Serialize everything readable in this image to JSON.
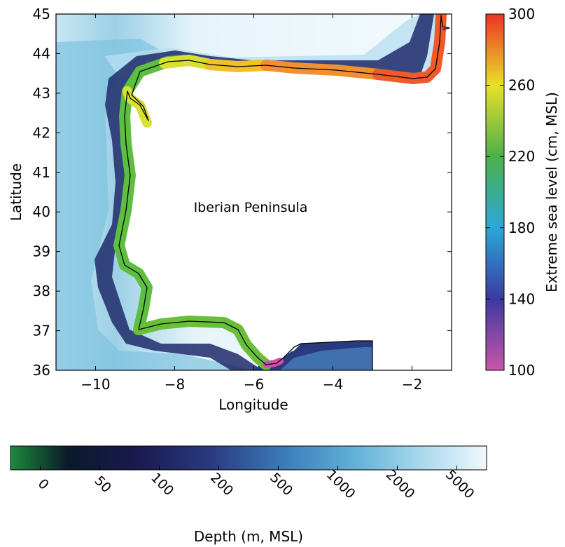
{
  "map": {
    "region_label": "Iberian Peninsula",
    "xlabel": "Longitude",
    "ylabel": "Latitude",
    "x_ticks": [
      "−10",
      "−8",
      "−6",
      "−4",
      "−2"
    ],
    "y_ticks": [
      "36",
      "37",
      "38",
      "39",
      "40",
      "41",
      "42",
      "43",
      "44",
      "45"
    ],
    "xlim": [
      -11,
      -1
    ],
    "ylim": [
      36,
      45
    ]
  },
  "colorbar_sea_level": {
    "label": "Extreme sea level (cm, MSL)",
    "ticks": [
      "100",
      "140",
      "180",
      "220",
      "260",
      "300"
    ],
    "colors": [
      "#cc55aa",
      "#3a3aa0",
      "#2aa8d8",
      "#4cb04a",
      "#e8e02a",
      "#ee3322"
    ]
  },
  "colorbar_depth": {
    "label": "Depth (m, MSL)",
    "ticks": [
      "0",
      "50",
      "100",
      "200",
      "500",
      "1000",
      "2000",
      "5000"
    ],
    "colors": [
      "#1e8a3c",
      "#0a1a2a",
      "#1a1a50",
      "#2a3a80",
      "#3a7ab8",
      "#60b0d8",
      "#a8d8ec",
      "#f0f8fc"
    ]
  }
}
